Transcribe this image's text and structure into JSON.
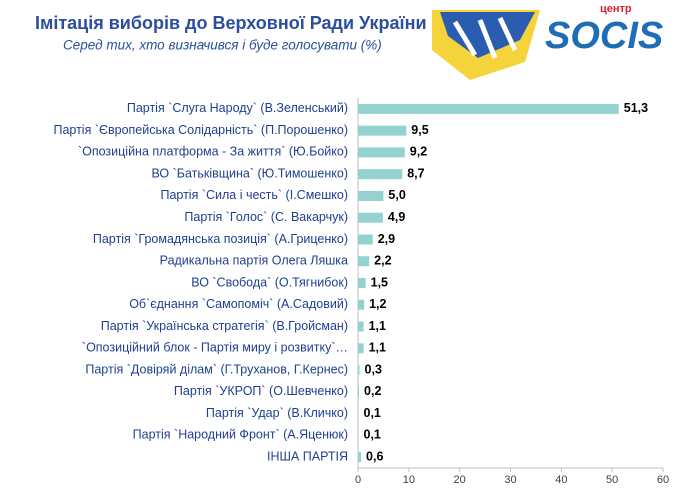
{
  "chart_data": {
    "type": "bar",
    "orientation": "horizontal",
    "title": "Імітація виборів до Верховної Ради України",
    "subtitle": "Серед тих, хто визначився і буде голосувати (%)",
    "categories": [
      "Партія `Слуга Народу` (В.Зеленський)",
      "Партія `Європейська Солідарність` (П.Порошенко)",
      "`Опозиційна платформа - За життя` (Ю.Бойко)",
      "ВО `Батьківщина` (Ю.Тимошенко)",
      "Партія `Сила і честь` (І.Смешко)",
      "Партія `Голос` (С. Вакарчук)",
      "Партія `Громадянська позиція` (А.Гриценко)",
      "Радикальна партія Олега Ляшка",
      "ВО `Свобода` (О.Тягнибок)",
      "Об`єднання `Самопоміч` (А.Садовий)",
      "Партія `Українська стратегія` (В.Гройсман)",
      "`Опозиційний блок - Партія миру і розвитку`…",
      "Партія `Довіряй ділам` (Г.Труханов, Г.Кернес)",
      "Партія `УКРОП` (О.Шевченко)",
      "Партія `Удар` (В.Кличко)",
      "Партія `Народний Фронт` (А.Яценюк)",
      "ІНША ПАРТІЯ"
    ],
    "values": [
      51.3,
      9.5,
      9.2,
      8.7,
      5.0,
      4.9,
      2.9,
      2.2,
      1.5,
      1.2,
      1.1,
      1.1,
      0.3,
      0.2,
      0.1,
      0.1,
      0.6
    ],
    "value_labels": [
      "51,3",
      "9,5",
      "9,2",
      "8,7",
      "5,0",
      "4,9",
      "2,9",
      "2,2",
      "1,5",
      "1,2",
      "1,1",
      "1,1",
      "0,3",
      "0,2",
      "0,1",
      "0,1",
      "0,6"
    ],
    "color": "#93d2cf",
    "xlim": [
      0,
      60
    ],
    "xticks": [
      0,
      10,
      20,
      30,
      40,
      50,
      60
    ]
  },
  "logo": {
    "name": "SOCIS",
    "tag": "центр"
  }
}
